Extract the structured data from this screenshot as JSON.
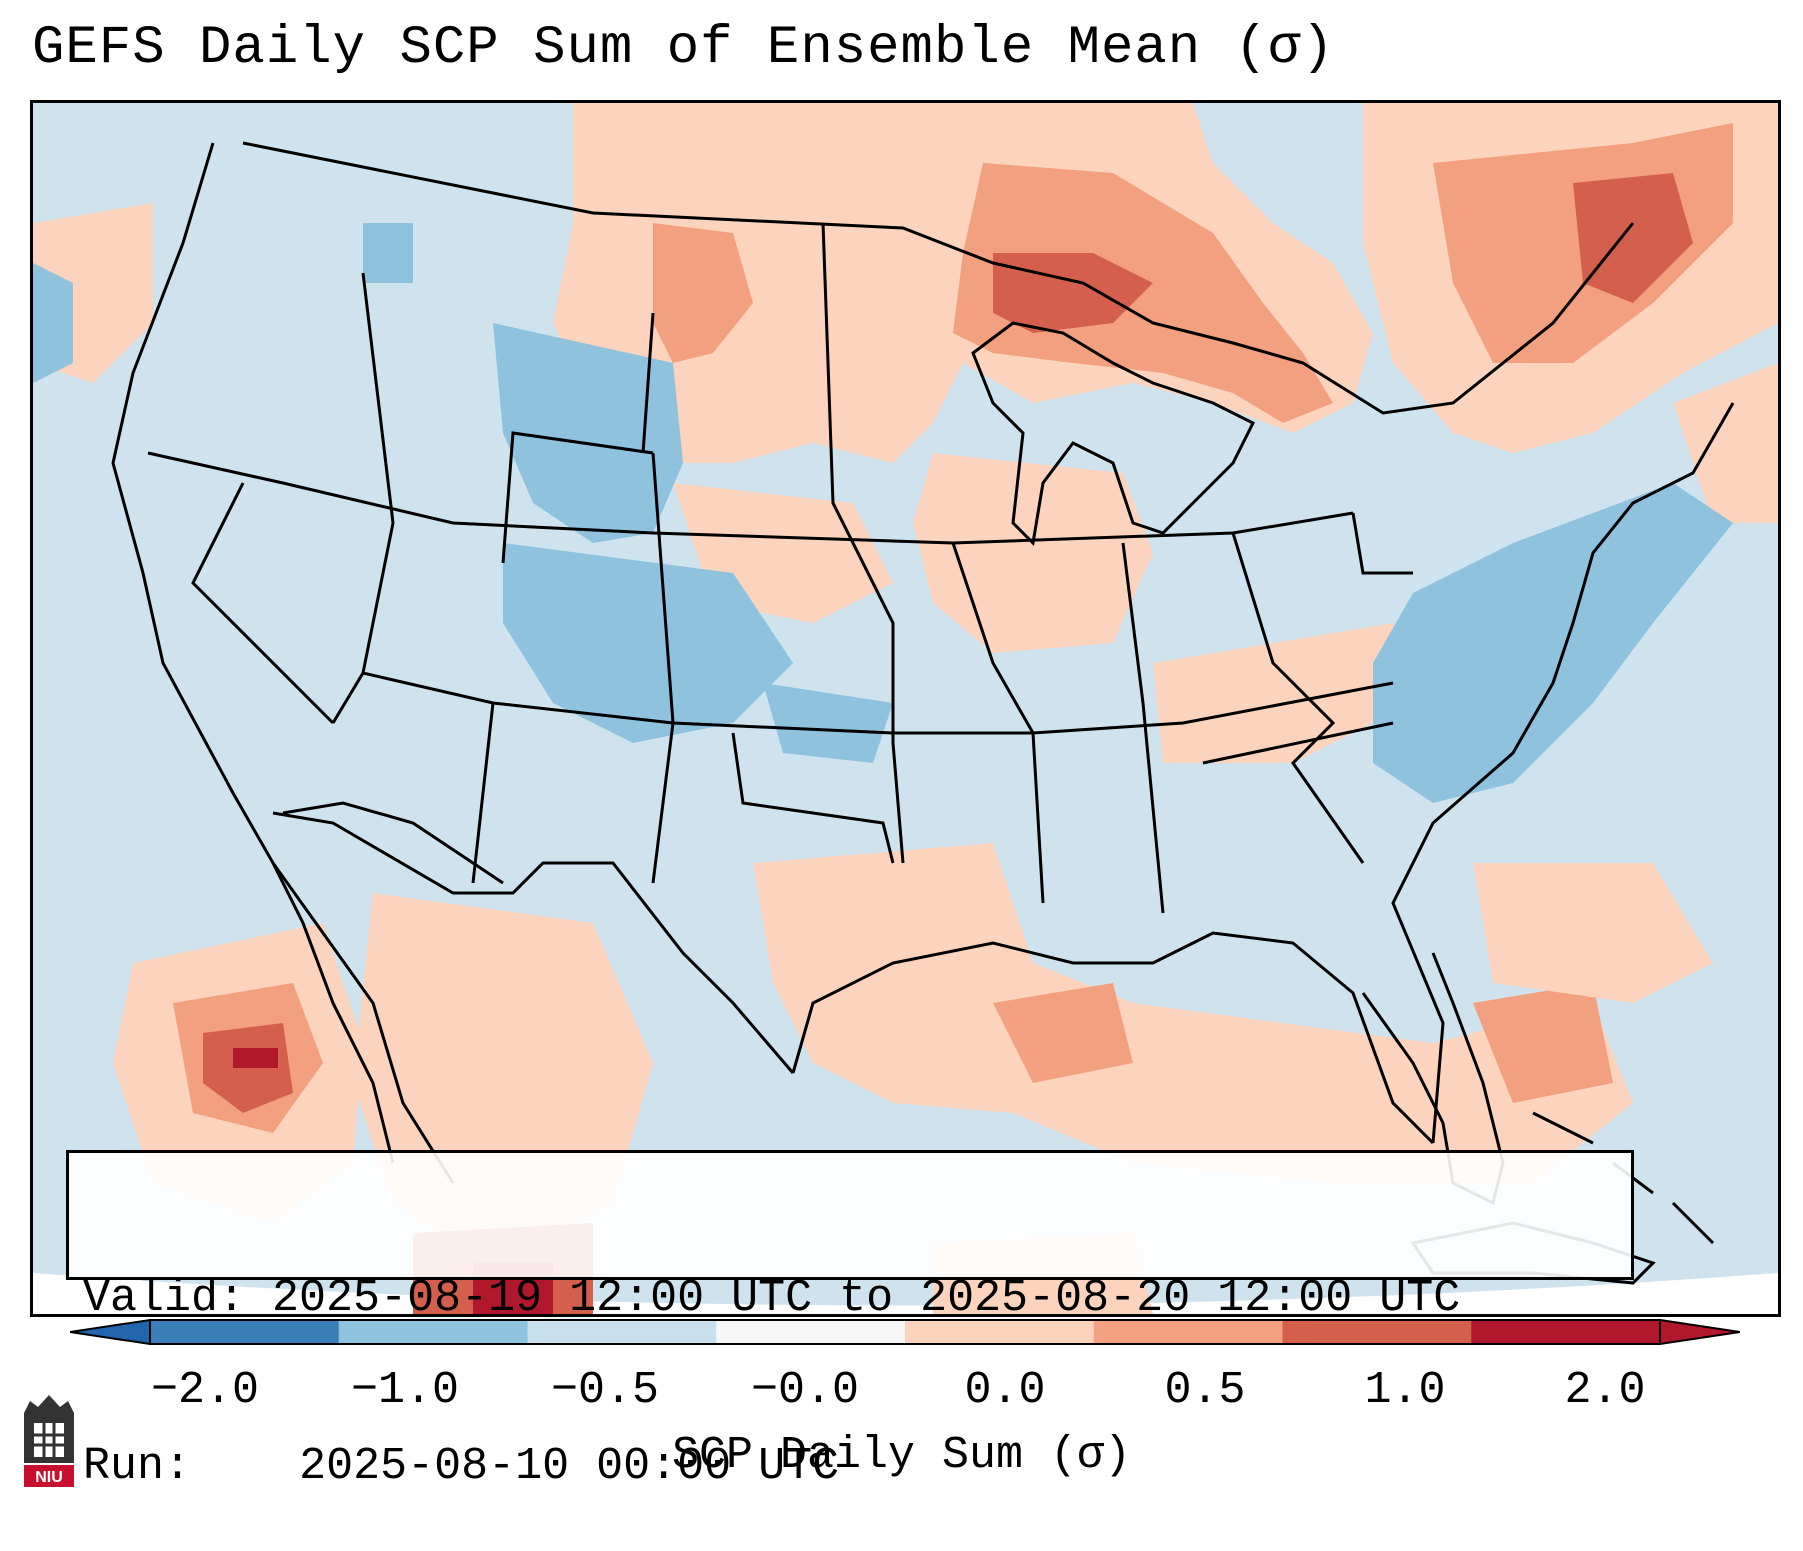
{
  "title": "GEFS Daily SCP Sum of Ensemble Mean (σ)",
  "info": {
    "valid_label": "Valid:",
    "valid_value": "2025-08-19 12:00 UTC to 2025-08-20 12:00 UTC",
    "run_label": "Run:",
    "run_value": "2025-08-10 00:00 UTC"
  },
  "colorbar": {
    "title": "SCP Daily Sum (σ)",
    "tick_labels": [
      "−2.0",
      "−1.0",
      "−0.5",
      "−0.0",
      "0.0",
      "0.5",
      "1.0",
      "2.0"
    ],
    "bin_colors": [
      "#3b7fba",
      "#8fc2dd",
      "#c9e1ef",
      "#f7f7f7",
      "#fcd3bd",
      "#f2a080",
      "#d45f4d",
      "#b2182b"
    ],
    "extend_low_color": "#2166ac",
    "extend_high_color": "#b2182b"
  },
  "map": {
    "background_color": "#cfe3ef",
    "land_border_color": "#000000",
    "anomaly_regions": [
      {
        "region": "northern-plains-ontario",
        "level": 1.0
      },
      {
        "region": "quebec",
        "level": 1.0
      },
      {
        "region": "baja-pacific",
        "level": 2.0
      },
      {
        "region": "colorado-wyoming",
        "level": -0.5
      },
      {
        "region": "mid-atlantic",
        "level": -0.5
      },
      {
        "region": "gulf-coast",
        "level": 0.5
      },
      {
        "region": "texas-plains",
        "level": 0.0
      },
      {
        "region": "iowa-missouri",
        "level": 0.5
      }
    ]
  },
  "logo": {
    "text": "NIU",
    "color": "#c8102e"
  }
}
